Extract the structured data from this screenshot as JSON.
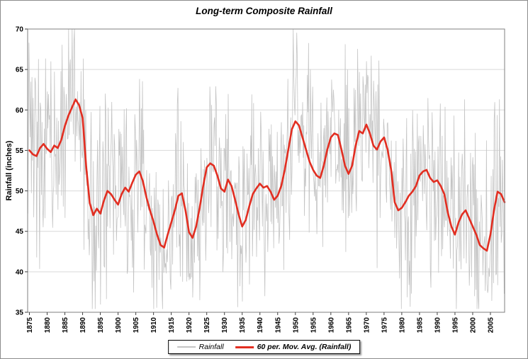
{
  "chart_data": {
    "type": "line",
    "title": "Long-term Composite Rainfall",
    "xlabel": "",
    "ylabel": "Rainfall (inches)",
    "xlim": [
      1874.5,
      2009
    ],
    "ylim": [
      35,
      70
    ],
    "x_ticks": [
      1875,
      1880,
      1885,
      1890,
      1895,
      1900,
      1905,
      1910,
      1915,
      1920,
      1925,
      1930,
      1935,
      1940,
      1945,
      1950,
      1955,
      1960,
      1965,
      1970,
      1975,
      1980,
      1985,
      1990,
      1995,
      2000,
      2005
    ],
    "y_ticks": [
      35,
      40,
      45,
      50,
      55,
      60,
      65,
      70
    ],
    "grid": "horizontal",
    "legend_position": "bottom",
    "series": [
      {
        "name": "Rainfall",
        "color": "#c4c4c4",
        "style": "noisy-raw",
        "points_per_year": 6,
        "noise_scale": 12,
        "seed": 20,
        "clip": [
          35.4,
          70
        ]
      },
      {
        "name": "60 per. Mov. Avg. (Rainfall)",
        "color": "#e22e21",
        "x_start": 1875,
        "values": [
          55.0,
          54.5,
          54.3,
          55.3,
          55.8,
          55.2,
          54.8,
          55.6,
          55.3,
          56.3,
          58.0,
          59.3,
          60.3,
          61.3,
          60.6,
          59.0,
          53.0,
          48.5,
          47.0,
          47.8,
          47.2,
          48.8,
          50.0,
          49.6,
          48.9,
          48.3,
          49.6,
          50.4,
          49.9,
          51.0,
          52.0,
          52.4,
          51.2,
          49.2,
          47.6,
          46.2,
          44.6,
          43.3,
          43.0,
          44.6,
          46.1,
          47.6,
          49.4,
          49.7,
          47.6,
          44.9,
          44.2,
          45.6,
          47.9,
          50.6,
          52.9,
          53.4,
          53.1,
          51.9,
          50.3,
          49.9,
          51.4,
          50.6,
          48.9,
          47.1,
          45.6,
          46.4,
          48.1,
          49.6,
          50.3,
          50.9,
          50.4,
          50.6,
          49.9,
          48.9,
          49.4,
          50.6,
          52.6,
          55.1,
          57.6,
          58.6,
          58.1,
          56.6,
          55.1,
          53.6,
          52.6,
          51.9,
          51.6,
          53.1,
          55.1,
          56.6,
          57.1,
          56.9,
          55.1,
          53.1,
          52.1,
          53.1,
          55.6,
          57.4,
          57.1,
          58.2,
          57.1,
          55.6,
          55.1,
          56.1,
          56.6,
          55.1,
          52.6,
          48.6,
          47.6,
          47.9,
          48.6,
          49.4,
          49.9,
          50.6,
          51.9,
          52.4,
          52.6,
          51.6,
          51.1,
          51.3,
          50.6,
          49.6,
          47.3,
          45.6,
          44.6,
          46.1,
          47.1,
          47.6,
          46.6,
          45.6,
          44.6,
          43.3,
          42.9,
          42.6,
          44.6,
          47.6,
          49.9,
          49.6,
          48.6
        ]
      }
    ],
    "colors": {
      "gridline": "#d9d9d9",
      "plot_border": "#7f7f7f",
      "tick": "#404040",
      "label": "#000000"
    }
  }
}
